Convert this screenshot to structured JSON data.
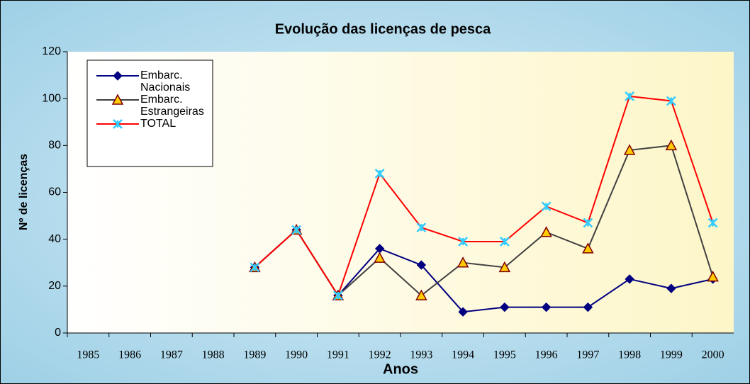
{
  "chart_data": {
    "type": "line",
    "title": "Evolução das licenças de pesca",
    "x_label": "Anos",
    "y_label": "Nº de licenças",
    "categories": [
      "1985",
      "1986",
      "1987",
      "1988",
      "1989",
      "1990",
      "1991",
      "1992",
      "1993",
      "1994",
      "1995",
      "1996",
      "1997",
      "1998",
      "1999",
      "2000"
    ],
    "series": [
      {
        "name": "Embarc. Nacionais",
        "color": "#000080",
        "marker": "diamond",
        "marker_color": "#000080",
        "values": [
          null,
          null,
          null,
          null,
          28,
          44,
          16,
          36,
          29,
          9,
          11,
          11,
          11,
          23,
          19,
          23
        ]
      },
      {
        "name": "Embarc. Estrangeiras",
        "color": "#404040",
        "marker": "triangle",
        "marker_color": "#ffcc00",
        "values": [
          null,
          null,
          null,
          null,
          28,
          44,
          16,
          32,
          16,
          30,
          28,
          43,
          36,
          78,
          80,
          24
        ]
      },
      {
        "name": "TOTAL",
        "color": "#ff0000",
        "marker": "star",
        "marker_color": "#33ccff",
        "values": [
          null,
          null,
          null,
          null,
          28,
          44,
          16,
          68,
          45,
          39,
          39,
          54,
          47,
          101,
          99,
          47
        ]
      }
    ],
    "ylim": [
      0,
      120
    ],
    "yticks": [
      0,
      20,
      40,
      60,
      80,
      100,
      120
    ],
    "legend": "upper left"
  }
}
